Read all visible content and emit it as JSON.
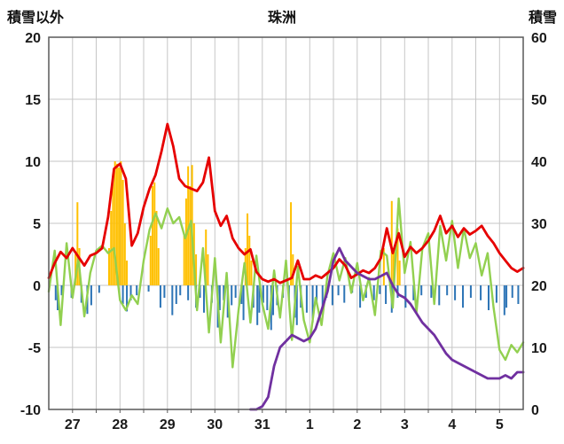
{
  "chart_data": {
    "type": "line",
    "title": "珠洲",
    "grid": true,
    "legend": "none",
    "colors": {
      "grid": "#c6c6c6",
      "frame": "#595959",
      "text": "#1a1a1a"
    },
    "left_axis": {
      "title": "積雪以外",
      "min": -10,
      "max": 20,
      "ticks": [
        20,
        15,
        10,
        5,
        0,
        -5,
        -10
      ]
    },
    "right_axis": {
      "title": "積雪",
      "min": 0,
      "max": 60,
      "ticks": [
        60,
        50,
        40,
        30,
        20,
        10,
        0
      ]
    },
    "x_axis": {
      "day_labels": [
        "27",
        "28",
        "29",
        "30",
        "31",
        "1",
        "2",
        "3",
        "4",
        "5"
      ],
      "hours_total": 240,
      "gridline_interval_hours": 12
    },
    "series": [
      {
        "name": "orange-bars",
        "type": "bar",
        "axis": "left",
        "color": "#ffc000",
        "bars": [
          [
            13,
            2.5
          ],
          [
            14,
            6.7
          ],
          [
            15,
            3.0
          ],
          [
            30,
            3.0
          ],
          [
            31,
            6.0
          ],
          [
            32,
            9.0
          ],
          [
            33,
            10.0
          ],
          [
            34,
            9.8
          ],
          [
            35,
            9.5
          ],
          [
            36,
            10.0
          ],
          [
            37,
            8.5
          ],
          [
            38,
            5.0
          ],
          [
            39,
            2.0
          ],
          [
            51,
            4.0
          ],
          [
            52,
            8.0
          ],
          [
            53,
            8.3
          ],
          [
            54,
            6.0
          ],
          [
            55,
            3.0
          ],
          [
            68,
            4.0
          ],
          [
            69,
            7.0
          ],
          [
            70,
            9.6
          ],
          [
            71,
            8.0
          ],
          [
            72,
            9.7
          ],
          [
            73,
            5.0
          ],
          [
            74,
            2.5
          ],
          [
            79,
            4.5
          ],
          [
            80,
            2.5
          ],
          [
            99,
            3.0
          ],
          [
            100,
            5.8
          ],
          [
            101,
            4.0
          ],
          [
            102,
            2.0
          ],
          [
            122,
            6.7
          ],
          [
            123,
            2.5
          ],
          [
            169,
            3.0
          ],
          [
            173,
            6.8
          ],
          [
            174,
            3.0
          ],
          [
            176,
            4.6
          ],
          [
            177,
            2.0
          ]
        ]
      },
      {
        "name": "blue-bars",
        "type": "bar",
        "axis": "left",
        "color": "#2e75b6",
        "bars": [
          [
            3,
            -1.2
          ],
          [
            4,
            -2.0
          ],
          [
            6,
            -0.8
          ],
          [
            11,
            -1.0
          ],
          [
            16,
            -1.4
          ],
          [
            19,
            -2.3
          ],
          [
            21,
            -1.6
          ],
          [
            25,
            -0.6
          ],
          [
            37,
            -1.5
          ],
          [
            39,
            -2.1
          ],
          [
            41,
            -1.2
          ],
          [
            44,
            -0.8
          ],
          [
            50,
            -0.5
          ],
          [
            56,
            -1.8
          ],
          [
            58,
            -1.0
          ],
          [
            62,
            -2.4
          ],
          [
            64,
            -1.5
          ],
          [
            66,
            -0.8
          ],
          [
            70,
            -1.2
          ],
          [
            74,
            -1.8
          ],
          [
            76,
            -1.0
          ],
          [
            78,
            -2.2
          ],
          [
            82,
            -1.4
          ],
          [
            85,
            -3.4
          ],
          [
            86,
            -2.0
          ],
          [
            88,
            -1.2
          ],
          [
            90,
            -2.6
          ],
          [
            92,
            -1.6
          ],
          [
            94,
            -1.0
          ],
          [
            97,
            -1.5
          ],
          [
            98,
            -2.8
          ],
          [
            103,
            -1.8
          ],
          [
            105,
            -3.2
          ],
          [
            106,
            -2.2
          ],
          [
            108,
            -1.4
          ],
          [
            110,
            -2.0
          ],
          [
            112,
            -3.6
          ],
          [
            113,
            -2.4
          ],
          [
            115,
            -1.6
          ],
          [
            118,
            -1.0
          ],
          [
            121,
            -1.2
          ],
          [
            124,
            -2.6
          ],
          [
            125,
            -3.2
          ],
          [
            127,
            -1.8
          ],
          [
            130,
            -2.2
          ],
          [
            133,
            -3.0
          ],
          [
            135,
            -1.4
          ],
          [
            138,
            -2.0
          ],
          [
            140,
            -1.0
          ],
          [
            143,
            -1.6
          ],
          [
            146,
            -0.8
          ],
          [
            149,
            -1.4
          ],
          [
            153,
            -0.6
          ],
          [
            157,
            -1.8
          ],
          [
            160,
            -1.0
          ],
          [
            164,
            -1.2
          ],
          [
            167,
            -0.7
          ],
          [
            170,
            -1.5
          ],
          [
            173,
            -2.2
          ],
          [
            176,
            -1.0
          ],
          [
            180,
            -1.8
          ],
          [
            184,
            -1.2
          ],
          [
            188,
            -0.8
          ],
          [
            193,
            -1.0
          ],
          [
            197,
            -1.6
          ],
          [
            201,
            -0.8
          ],
          [
            205,
            -1.2
          ],
          [
            209,
            -1.8
          ],
          [
            213,
            -1.0
          ],
          [
            218,
            -1.2
          ],
          [
            222,
            -2.0
          ],
          [
            226,
            -1.4
          ],
          [
            230,
            -2.4
          ],
          [
            231,
            -1.8
          ],
          [
            234,
            -1.0
          ],
          [
            237,
            -1.5
          ]
        ]
      },
      {
        "name": "green-line",
        "type": "line",
        "axis": "left",
        "color": "#92d050",
        "width": 2.4,
        "start_hour": 0,
        "step_hours": 3,
        "values": [
          -0.5,
          2.8,
          -3.2,
          3.4,
          -1.0,
          2.2,
          -2.5,
          1.0,
          2.8,
          3.2,
          2.6,
          3.0,
          -1.2,
          -2.0,
          -0.8,
          -1.5,
          2.0,
          4.5,
          5.8,
          4.6,
          6.2,
          5.0,
          5.5,
          3.8,
          5.2,
          -2.0,
          3.0,
          -3.8,
          2.2,
          -4.6,
          1.0,
          -6.6,
          -2.0,
          1.8,
          -3.0,
          2.4,
          -1.5,
          -3.5,
          1.2,
          -2.6,
          2.0,
          -4.4,
          1.5,
          -2.8,
          -4.6,
          -1.0,
          -3.2,
          0.8,
          2.6,
          0.4,
          2.2,
          -0.6,
          1.8,
          -1.2,
          0.6,
          -2.4,
          2.8,
          2.4,
          -1.8,
          7.0,
          1.0,
          3.5,
          -2.2,
          3.0,
          4.2,
          -1.5,
          4.8,
          2.0,
          5.2,
          1.4,
          4.6,
          2.2,
          3.4,
          0.8,
          2.6,
          -1.8,
          -5.2,
          -6.0,
          -4.8,
          -5.4,
          -4.6
        ]
      },
      {
        "name": "red-line",
        "type": "line",
        "axis": "left",
        "color": "#e60000",
        "width": 2.8,
        "start_hour": 0,
        "step_hours": 3,
        "values": [
          0.6,
          1.8,
          2.7,
          2.2,
          3.0,
          2.3,
          1.6,
          2.4,
          2.6,
          3.0,
          5.5,
          9.4,
          9.8,
          8.6,
          3.2,
          4.2,
          6.3,
          7.8,
          8.9,
          10.8,
          13.0,
          11.2,
          8.6,
          8.0,
          7.8,
          7.6,
          8.3,
          10.3,
          6.0,
          4.8,
          5.6,
          3.8,
          3.0,
          2.5,
          2.9,
          1.1,
          0.5,
          0.3,
          0.5,
          0.2,
          0.4,
          0.6,
          2.0,
          0.5,
          0.5,
          0.8,
          0.6,
          1.0,
          1.4,
          2.1,
          1.6,
          0.6,
          0.9,
          1.2,
          1.0,
          1.4,
          2.2,
          4.6,
          2.6,
          4.2,
          2.3,
          3.1,
          2.6,
          3.0,
          3.6,
          4.4,
          5.6,
          4.2,
          4.8,
          3.9,
          4.6,
          4.1,
          4.4,
          4.8,
          4.0,
          3.4,
          2.6,
          2.0,
          1.4,
          1.1,
          1.4
        ]
      },
      {
        "name": "purple-snow-depth-line",
        "type": "line",
        "axis": "right",
        "color": "#7030a0",
        "width": 2.8,
        "start_hour": 102,
        "step_hours": 3,
        "values": [
          0,
          0,
          0.5,
          2,
          7,
          10,
          11,
          12,
          11.5,
          11,
          11.5,
          13,
          16,
          19,
          24,
          26,
          24,
          23,
          22,
          21.5,
          21,
          21,
          21.5,
          22,
          20,
          18.5,
          18,
          17,
          15.5,
          14,
          13,
          12,
          10.5,
          9,
          8,
          7.5,
          7,
          6.5,
          6,
          5.5,
          5,
          5,
          5,
          5.5,
          5,
          6,
          6
        ]
      }
    ]
  }
}
